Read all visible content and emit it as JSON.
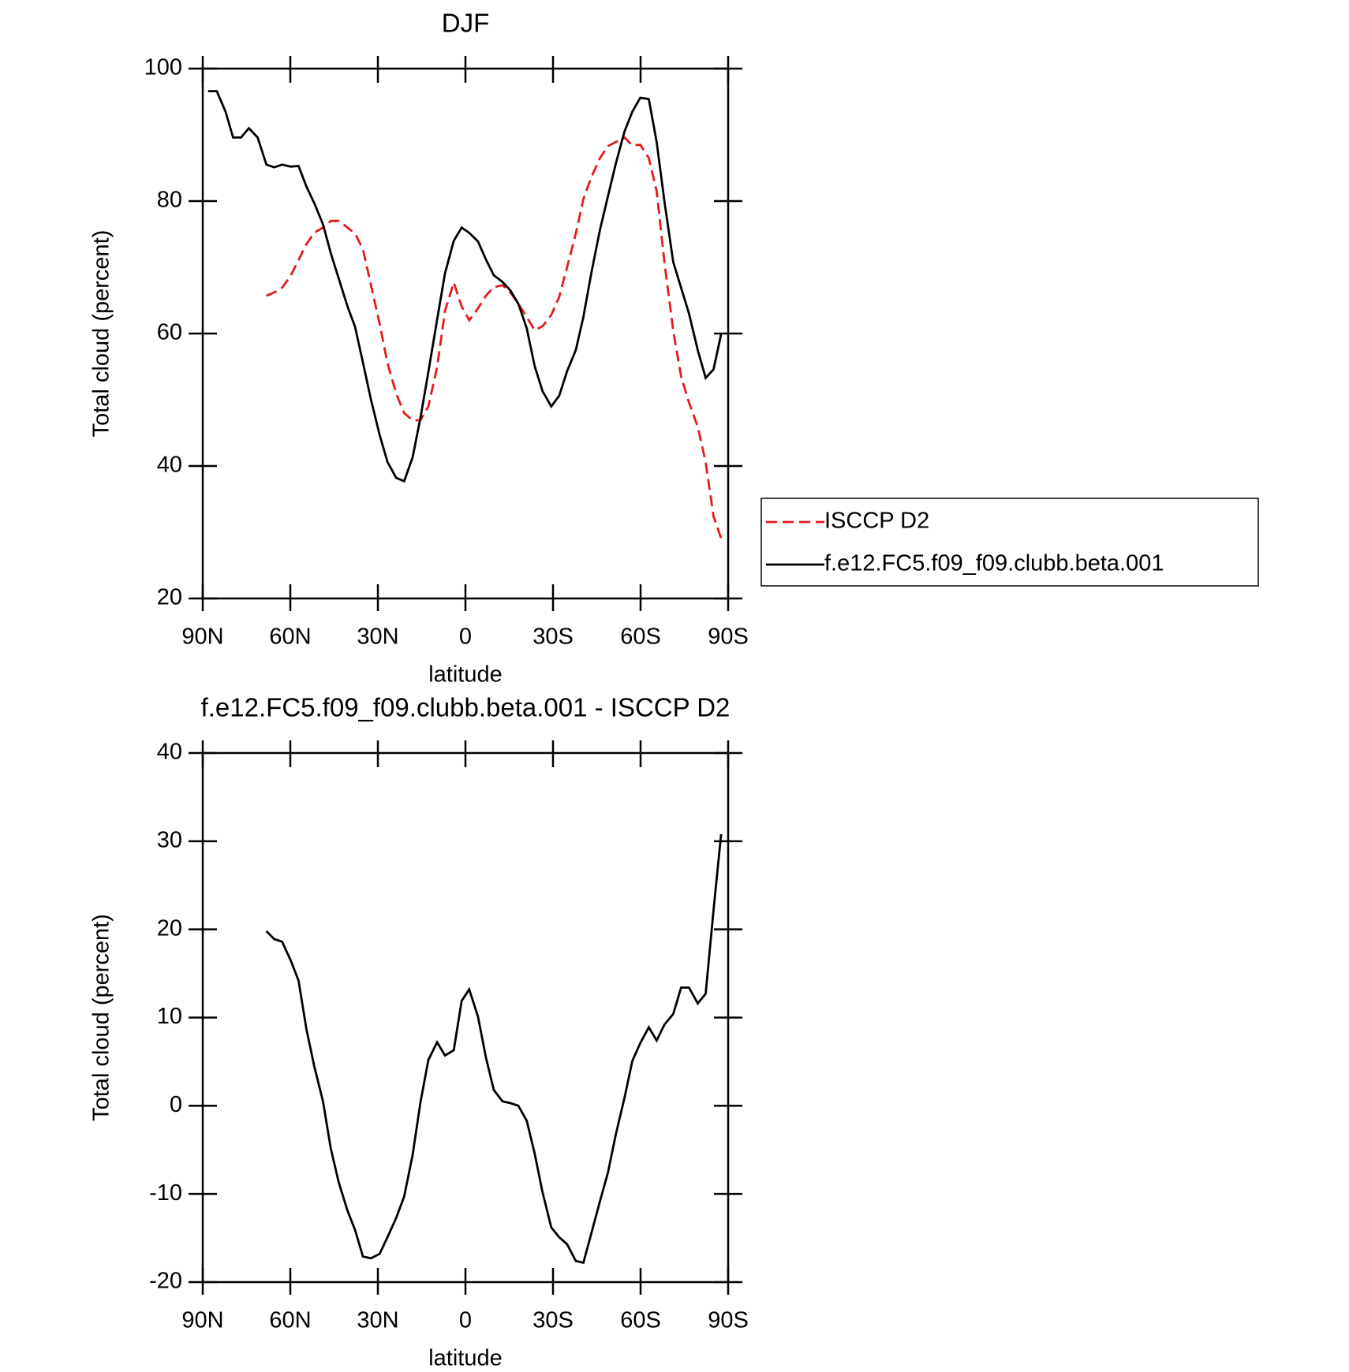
{
  "chart_data": [
    {
      "type": "line",
      "title": "DJF",
      "xlabel": "latitude",
      "ylabel": "Total cloud (percent)",
      "x": [
        88.2,
        85.2,
        82.2,
        79.6,
        76.9,
        74.2,
        71.2,
        68.2,
        65.5,
        62.8,
        59.9,
        57.2,
        54.5,
        51.8,
        48.8,
        46.1,
        43.4,
        40.4,
        37.8,
        35.1,
        32.4,
        29.4,
        26.7,
        23.7,
        21.0,
        18.1,
        15.4,
        12.7,
        9.7,
        7.0,
        4.0,
        1.3,
        -1.3,
        -4.3,
        -7.0,
        -9.7,
        -12.7,
        -15.4,
        -18.1,
        -21.0,
        -23.7,
        -26.4,
        -29.4,
        -32.1,
        -34.8,
        -37.8,
        -40.4,
        -43.1,
        -46.1,
        -48.8,
        -51.5,
        -54.5,
        -57.2,
        -59.9,
        -62.8,
        -65.5,
        -68.2,
        -71.2,
        -73.9,
        -76.6,
        -79.6,
        -82.3,
        -85.0,
        -87.6
      ],
      "series": [
        {
          "name": "ISCCP D2",
          "color": "#e41a1c",
          "dashed": true,
          "values": [
            null,
            null,
            null,
            null,
            null,
            null,
            null,
            65.7,
            66.2,
            66.9,
            68.7,
            71.1,
            73.5,
            75.2,
            76.0,
            77.0,
            77.0,
            76.0,
            75.1,
            72.7,
            67.4,
            61.5,
            55.5,
            50.9,
            48.0,
            46.9,
            46.9,
            49.0,
            54.9,
            63.4,
            67.7,
            64.1,
            62.0,
            63.8,
            65.7,
            67.0,
            67.3,
            66.2,
            64.5,
            62.5,
            60.5,
            61.1,
            62.8,
            65.5,
            70.0,
            75.1,
            80.3,
            83.6,
            86.5,
            88.3,
            88.9,
            89.6,
            88.4,
            88.5,
            86.5,
            81.5,
            70.7,
            60.4,
            53.5,
            49.6,
            45.9,
            40.6,
            32.4,
            29.1
          ]
        },
        {
          "name": "f.e12.FC5.f09_f09.clubb.beta.001",
          "color": "#000000",
          "dashed": false,
          "values": [
            96.6,
            96.6,
            93.5,
            89.6,
            89.6,
            91.0,
            89.6,
            85.5,
            85.1,
            85.5,
            85.2,
            85.3,
            82.2,
            79.7,
            76.5,
            72.1,
            68.3,
            64.1,
            61.0,
            55.6,
            50.1,
            44.7,
            40.6,
            38.2,
            37.7,
            41.3,
            47.3,
            54.2,
            62.1,
            69.1,
            74.0,
            76.0,
            75.2,
            73.9,
            71.2,
            68.8,
            67.8,
            66.5,
            64.5,
            60.8,
            55.1,
            51.3,
            49.0,
            50.6,
            54.3,
            57.5,
            62.5,
            69.1,
            75.7,
            80.7,
            85.6,
            90.5,
            93.5,
            95.6,
            95.4,
            88.9,
            79.9,
            70.8,
            66.9,
            63.0,
            57.5,
            53.3,
            54.6,
            59.9
          ]
        }
      ],
      "xlim": [
        90,
        -90
      ],
      "xticks": [
        {
          "value": 90,
          "label": "90N"
        },
        {
          "value": 60,
          "label": "60N"
        },
        {
          "value": 30,
          "label": "30N"
        },
        0,
        {
          "value": -30,
          "label": "30S"
        },
        {
          "value": -60,
          "label": "60S"
        },
        {
          "value": -90,
          "label": "90S"
        }
      ],
      "ylim": [
        20,
        100
      ],
      "yticks": [
        20,
        40,
        60,
        80,
        100
      ],
      "legend": "right"
    },
    {
      "type": "line",
      "title": "f.e12.FC5.f09_f09.clubb.beta.001 - ISCCP D2",
      "xlabel": "latitude",
      "ylabel": "Total cloud (percent)",
      "x": [
        88.2,
        85.2,
        82.2,
        79.6,
        76.9,
        74.2,
        71.2,
        68.2,
        65.5,
        62.8,
        59.9,
        57.2,
        54.5,
        51.8,
        48.8,
        46.1,
        43.4,
        40.4,
        37.8,
        35.1,
        32.4,
        29.4,
        26.7,
        23.7,
        21.0,
        18.1,
        15.4,
        12.7,
        9.7,
        7.0,
        4.0,
        1.3,
        -1.3,
        -4.3,
        -7.0,
        -9.7,
        -12.7,
        -15.4,
        -18.1,
        -21.0,
        -23.7,
        -26.4,
        -29.4,
        -32.1,
        -34.8,
        -37.8,
        -40.4,
        -43.1,
        -46.1,
        -48.8,
        -51.5,
        -54.5,
        -57.2,
        -59.9,
        -62.8,
        -65.5,
        -68.2,
        -71.2,
        -73.9,
        -76.6,
        -79.6,
        -82.3,
        -85.0,
        -87.6
      ],
      "series": [
        {
          "color": "#000000",
          "dashed": false,
          "values": [
            null,
            null,
            null,
            null,
            null,
            null,
            null,
            19.8,
            18.9,
            18.6,
            16.5,
            14.2,
            8.7,
            4.5,
            0.5,
            -4.9,
            -8.7,
            -11.9,
            -14.1,
            -17.1,
            -17.3,
            -16.8,
            -14.9,
            -12.7,
            -10.3,
            -5.6,
            0.4,
            5.2,
            7.2,
            5.7,
            6.3,
            11.9,
            13.2,
            10.1,
            5.5,
            1.8,
            0.5,
            0.3,
            0.0,
            -1.7,
            -5.4,
            -9.8,
            -13.8,
            -14.9,
            -15.7,
            -17.6,
            -17.8,
            -14.5,
            -10.8,
            -7.6,
            -3.3,
            0.9,
            5.1,
            7.1,
            8.9,
            7.4,
            9.2,
            10.4,
            13.4,
            13.4,
            11.6,
            12.7,
            22.2,
            30.8
          ]
        }
      ],
      "xlim": [
        90,
        -90
      ],
      "xticks": [
        {
          "value": 90,
          "label": "90N"
        },
        {
          "value": 60,
          "label": "60N"
        },
        {
          "value": 30,
          "label": "30N"
        },
        0,
        {
          "value": -30,
          "label": "30S"
        },
        {
          "value": -60,
          "label": "60S"
        },
        {
          "value": -90,
          "label": "90S"
        }
      ],
      "ylim": [
        -20,
        40
      ],
      "yticks": [
        -20,
        -10,
        0,
        10,
        20,
        30,
        40
      ]
    }
  ]
}
